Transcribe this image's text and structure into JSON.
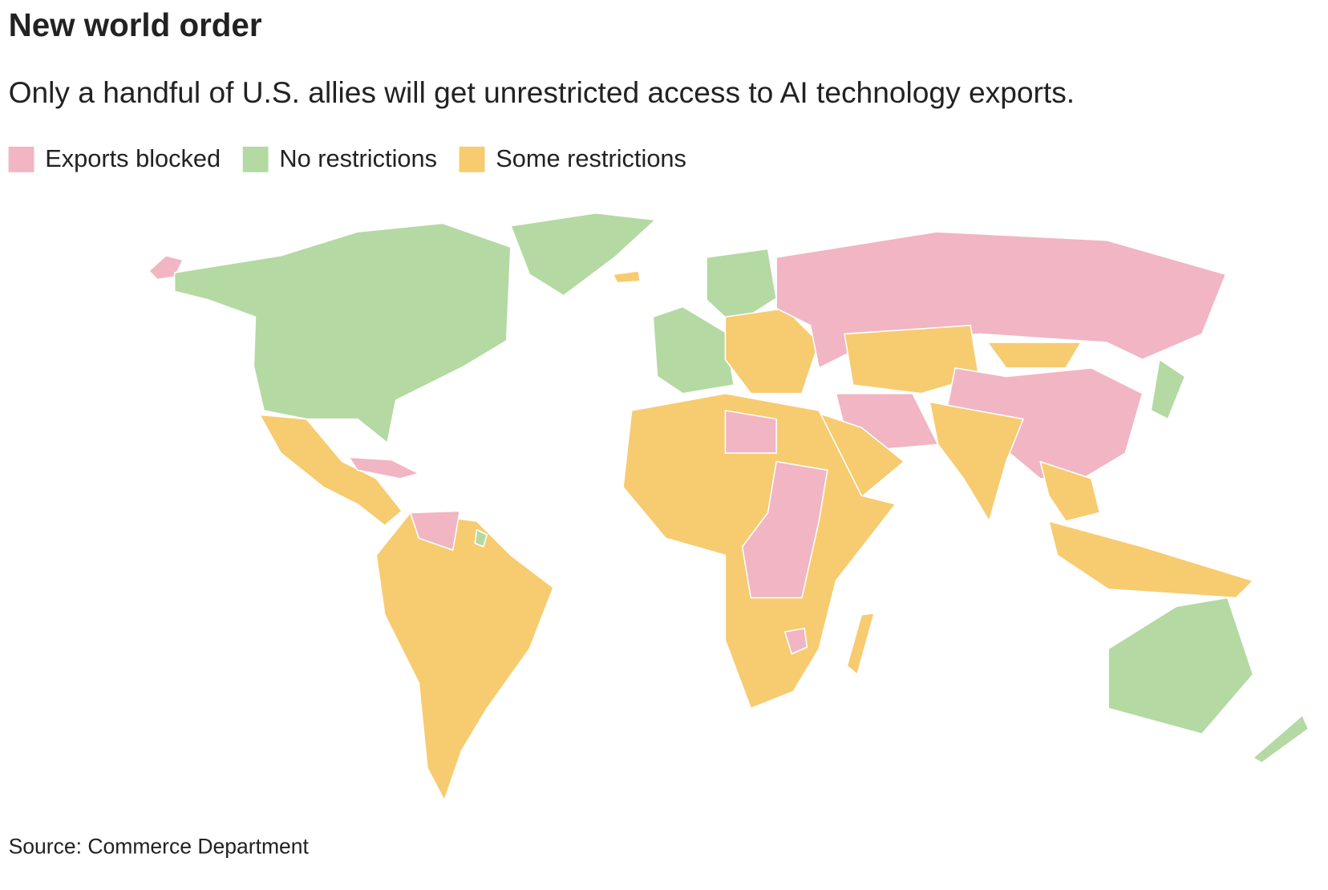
{
  "header": {
    "title": "New world order",
    "subtitle": "Only a handful of U.S. allies will get unrestricted access to AI technology exports."
  },
  "legend": [
    {
      "label": "Exports blocked",
      "color": "#f1b5c3"
    },
    {
      "label": "No restrictions",
      "color": "#b4d9a3"
    },
    {
      "label": "Some restrictions",
      "color": "#f7cb70"
    }
  ],
  "source": "Source: Commerce Department"
}
